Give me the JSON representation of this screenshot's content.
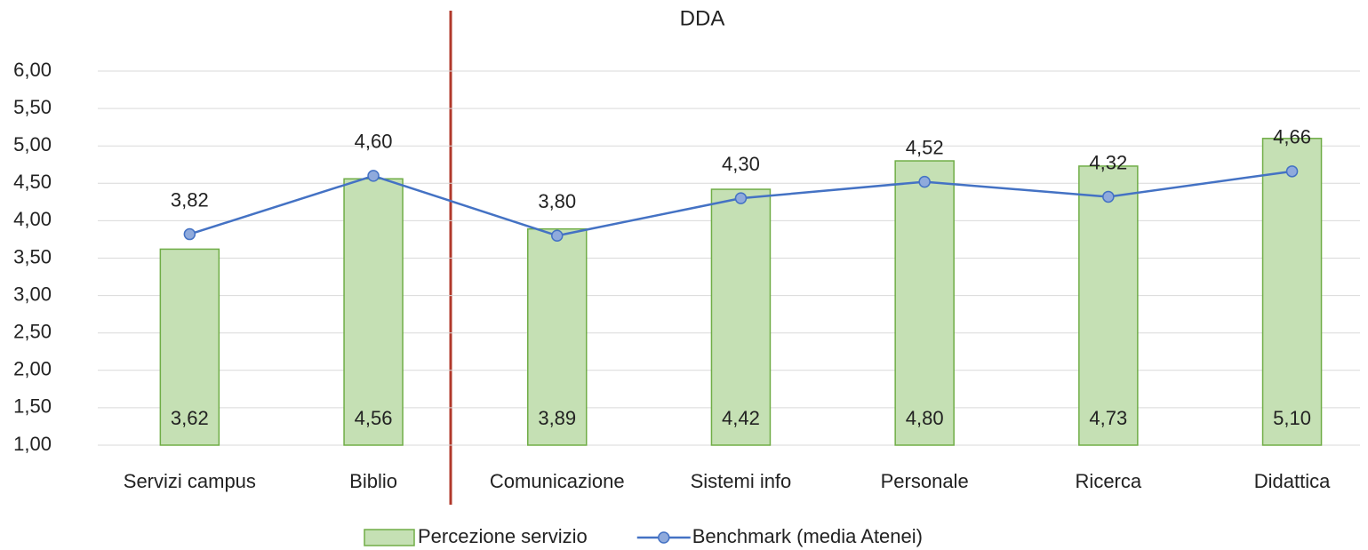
{
  "chart_data": {
    "type": "combo",
    "title": "DDA",
    "categories": [
      "Servizi campus",
      "Biblio",
      "Comunicazione",
      "Sistemi info",
      "Personale",
      "Ricerca",
      "Didattica"
    ],
    "series": [
      {
        "name": "Percezione servizio",
        "type": "bar",
        "color": "#c5e0b4",
        "edge_color": "#70ad47",
        "values": [
          3.62,
          4.56,
          3.89,
          4.42,
          4.8,
          4.73,
          5.1
        ],
        "value_labels": [
          "3,62",
          "4,56",
          "3,89",
          "4,42",
          "4,80",
          "4,73",
          "5,10"
        ]
      },
      {
        "name": "Benchmark (media Atenei)",
        "type": "line",
        "color": "#4472c4",
        "marker_color": "#8faadc",
        "values": [
          3.82,
          4.6,
          3.8,
          4.3,
          4.52,
          4.32,
          4.66
        ],
        "value_labels": [
          "3,82",
          "4,60",
          "3,80",
          "4,30",
          "4,52",
          "4,32",
          "4,66"
        ]
      }
    ],
    "ylim": [
      1,
      6
    ],
    "yticks": [
      {
        "value": 1,
        "label": "1,00"
      },
      {
        "value": 1.5,
        "label": "1,50"
      },
      {
        "value": 2,
        "label": "2,00"
      },
      {
        "value": 2.5,
        "label": "2,50"
      },
      {
        "value": 3,
        "label": "3,00"
      },
      {
        "value": 3.5,
        "label": "3,50"
      },
      {
        "value": 4,
        "label": "4,00"
      },
      {
        "value": 4.5,
        "label": "4,50"
      },
      {
        "value": 5,
        "label": "5,00"
      },
      {
        "value": 5.5,
        "label": "5,50"
      },
      {
        "value": 6,
        "label": "6,00"
      }
    ],
    "grid": true,
    "legend": "bottom"
  }
}
